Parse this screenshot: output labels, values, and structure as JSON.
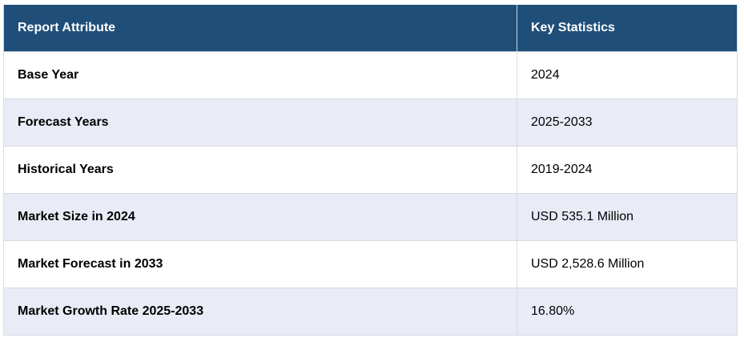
{
  "table": {
    "headers": [
      "Report Attribute",
      "Key Statistics"
    ],
    "rows": [
      {
        "attribute": "Base Year",
        "value": "2024"
      },
      {
        "attribute": "Forecast Years",
        "value": "2025-2033"
      },
      {
        "attribute": "Historical Years",
        "value": "2019-2024"
      },
      {
        "attribute": "Market Size in 2024",
        "value": "USD 535.1 Million"
      },
      {
        "attribute": "Market Forecast in 2033",
        "value": "USD 2,528.6 Million"
      },
      {
        "attribute": "Market Growth Rate 2025-2033",
        "value": "16.80%"
      }
    ]
  },
  "colors": {
    "header_bg": "#1f4e79",
    "header_text": "#ffffff",
    "row_alt_bg": "#e9ecf6",
    "row_bg": "#ffffff"
  }
}
